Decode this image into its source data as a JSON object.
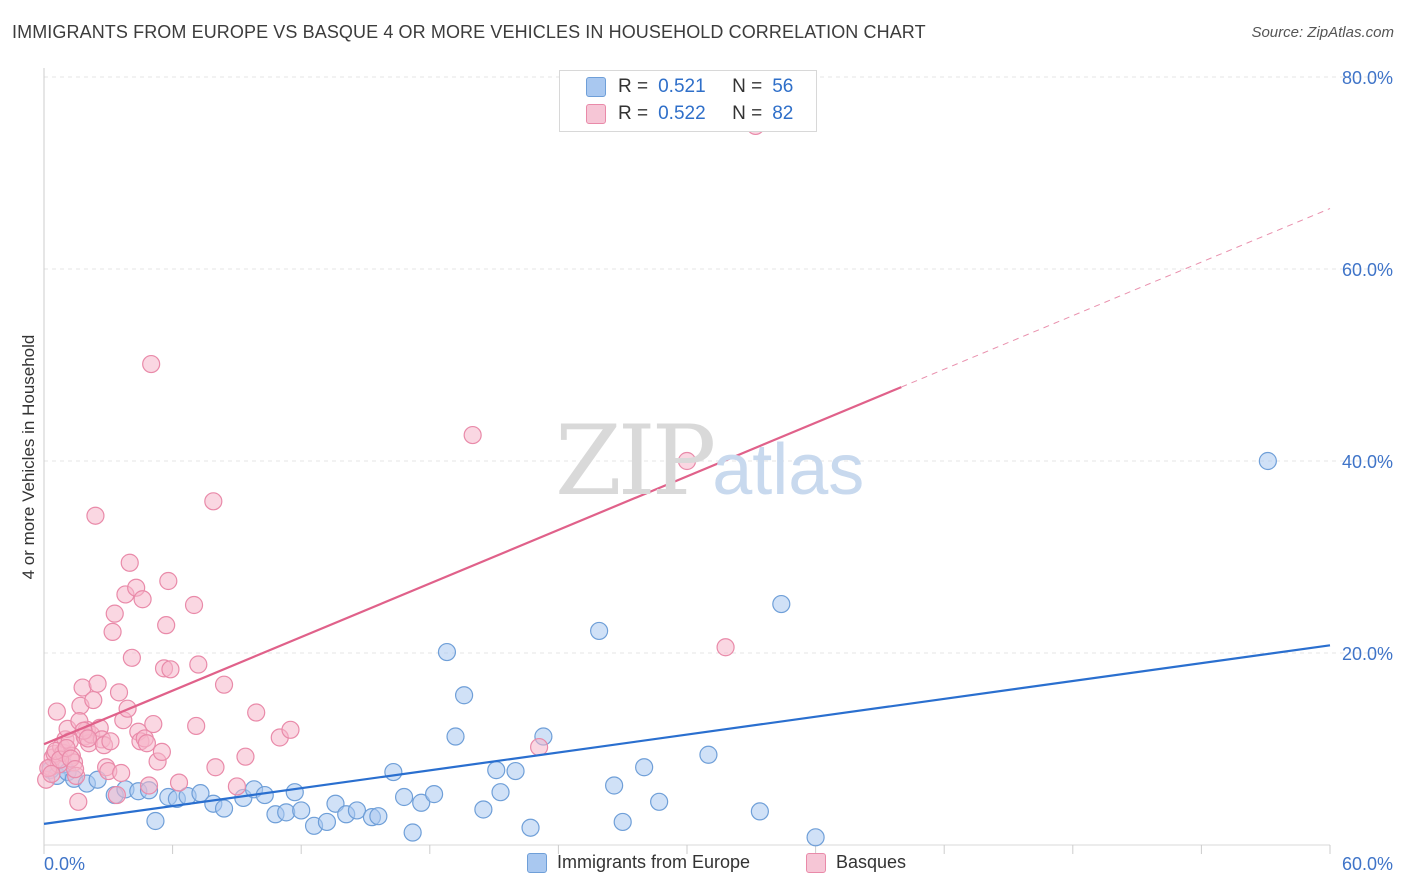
{
  "title": "IMMIGRANTS FROM EUROPE VS BASQUE 4 OR MORE VEHICLES IN HOUSEHOLD CORRELATION CHART",
  "source": "Source: ZipAtlas.com",
  "watermark": {
    "zip": "ZIP",
    "atlas": "atlas"
  },
  "legend": {
    "r_label": "R =",
    "n_label": "N =",
    "rows": [
      {
        "r": "0.521",
        "n": "56"
      },
      {
        "r": "0.522",
        "n": "82"
      }
    ]
  },
  "colors": {
    "blue_fill": "#a9c8f0",
    "blue_stroke": "#6f9fd8",
    "blue_line": "#2a6fcf",
    "pink_fill": "#f6b7cb",
    "pink_stroke": "#e98aa9",
    "pink_line": "#e0618a",
    "tick_text": "#3f74c8",
    "grid": "#e4e4e4"
  },
  "chart_data": {
    "type": "scatter",
    "title": "IMMIGRANTS FROM EUROPE VS BASQUE 4 OR MORE VEHICLES IN HOUSEHOLD CORRELATION CHART",
    "xlabel": "",
    "ylabel": "4 or more Vehicles in Household",
    "xlim": [
      0,
      60
    ],
    "ylim": [
      0,
      80
    ],
    "x_tick_labels": [
      "0.0%",
      "60.0%"
    ],
    "y_ticks": [
      20,
      40,
      60,
      80
    ],
    "y_tick_labels": [
      "20.0%",
      "40.0%",
      "60.0%",
      "80.0%"
    ],
    "grid": true,
    "legend_position": "bottom",
    "series": [
      {
        "name": "Immigrants from Europe",
        "color": "#a9c8f0",
        "trend": {
          "x0": 0,
          "y0": 2.2,
          "x1": 60,
          "y1": 20.8,
          "dashed_from": null
        },
        "points": [
          [
            0.3,
            7.8
          ],
          [
            0.6,
            7.2
          ],
          [
            0.9,
            8.4
          ],
          [
            1.1,
            7.6
          ],
          [
            1.4,
            6.9
          ],
          [
            2.0,
            6.4
          ],
          [
            2.5,
            6.8
          ],
          [
            3.3,
            5.2
          ],
          [
            3.8,
            5.8
          ],
          [
            4.4,
            5.6
          ],
          [
            4.9,
            5.7
          ],
          [
            5.2,
            2.5
          ],
          [
            5.8,
            5.0
          ],
          [
            6.2,
            4.8
          ],
          [
            6.7,
            5.1
          ],
          [
            7.3,
            5.4
          ],
          [
            7.9,
            4.3
          ],
          [
            8.4,
            3.8
          ],
          [
            9.3,
            4.9
          ],
          [
            9.8,
            5.8
          ],
          [
            10.3,
            5.2
          ],
          [
            10.8,
            3.2
          ],
          [
            11.3,
            3.4
          ],
          [
            11.7,
            5.5
          ],
          [
            12.0,
            3.6
          ],
          [
            12.6,
            2.0
          ],
          [
            13.2,
            2.4
          ],
          [
            13.6,
            4.3
          ],
          [
            14.1,
            3.2
          ],
          [
            14.6,
            3.6
          ],
          [
            15.3,
            2.9
          ],
          [
            15.6,
            3.0
          ],
          [
            16.3,
            7.6
          ],
          [
            16.8,
            5.0
          ],
          [
            17.2,
            1.3
          ],
          [
            17.6,
            4.4
          ],
          [
            18.2,
            5.3
          ],
          [
            18.8,
            20.1
          ],
          [
            19.2,
            11.3
          ],
          [
            19.6,
            15.6
          ],
          [
            20.5,
            3.7
          ],
          [
            21.1,
            7.8
          ],
          [
            21.3,
            5.5
          ],
          [
            22.0,
            7.7
          ],
          [
            22.7,
            1.8
          ],
          [
            23.3,
            11.3
          ],
          [
            25.9,
            22.3
          ],
          [
            26.6,
            6.2
          ],
          [
            27.0,
            2.4
          ],
          [
            28.0,
            8.1
          ],
          [
            28.7,
            4.5
          ],
          [
            31.0,
            9.4
          ],
          [
            33.4,
            3.5
          ],
          [
            34.4,
            25.1
          ],
          [
            36.0,
            0.8
          ],
          [
            57.1,
            40.0
          ]
        ]
      },
      {
        "name": "Basques",
        "color": "#f6b7cb",
        "trend": {
          "x0": 0,
          "y0": 10.5,
          "x1": 60,
          "y1": 66.3,
          "dashed_from": 40
        },
        "points": [
          [
            0.1,
            6.8
          ],
          [
            0.3,
            8.1
          ],
          [
            0.4,
            9.1
          ],
          [
            0.5,
            9.5
          ],
          [
            0.6,
            13.9
          ],
          [
            0.7,
            8.4
          ],
          [
            0.8,
            10.2
          ],
          [
            0.9,
            9.6
          ],
          [
            1.0,
            11.0
          ],
          [
            1.1,
            12.1
          ],
          [
            1.2,
            10.8
          ],
          [
            1.3,
            9.3
          ],
          [
            1.4,
            8.6
          ],
          [
            1.5,
            7.2
          ],
          [
            1.6,
            4.5
          ],
          [
            1.7,
            14.5
          ],
          [
            1.8,
            16.4
          ],
          [
            1.9,
            11.3
          ],
          [
            2.0,
            12.0
          ],
          [
            2.1,
            10.6
          ],
          [
            2.2,
            11.5
          ],
          [
            2.3,
            15.1
          ],
          [
            2.4,
            34.3
          ],
          [
            2.5,
            16.8
          ],
          [
            2.6,
            12.2
          ],
          [
            2.7,
            11.0
          ],
          [
            2.8,
            10.4
          ],
          [
            2.9,
            8.1
          ],
          [
            3.0,
            7.7
          ],
          [
            3.1,
            10.8
          ],
          [
            3.2,
            22.2
          ],
          [
            3.3,
            24.1
          ],
          [
            3.4,
            5.2
          ],
          [
            3.5,
            15.9
          ],
          [
            3.6,
            7.5
          ],
          [
            3.7,
            13.0
          ],
          [
            3.8,
            26.1
          ],
          [
            3.9,
            14.2
          ],
          [
            4.0,
            29.4
          ],
          [
            4.1,
            19.5
          ],
          [
            4.3,
            26.8
          ],
          [
            4.4,
            11.8
          ],
          [
            4.5,
            10.8
          ],
          [
            4.6,
            25.6
          ],
          [
            4.7,
            11.1
          ],
          [
            4.8,
            10.6
          ],
          [
            4.9,
            6.2
          ],
          [
            5.0,
            50.1
          ],
          [
            5.1,
            12.6
          ],
          [
            5.3,
            8.7
          ],
          [
            5.5,
            9.7
          ],
          [
            5.6,
            18.4
          ],
          [
            5.7,
            22.9
          ],
          [
            5.8,
            27.5
          ],
          [
            5.9,
            18.3
          ],
          [
            6.3,
            6.5
          ],
          [
            7.0,
            25.0
          ],
          [
            7.1,
            12.4
          ],
          [
            7.2,
            18.8
          ],
          [
            7.9,
            35.8
          ],
          [
            8.0,
            8.1
          ],
          [
            8.4,
            16.7
          ],
          [
            9.0,
            6.1
          ],
          [
            9.4,
            9.2
          ],
          [
            9.9,
            13.8
          ],
          [
            11.0,
            11.2
          ],
          [
            11.5,
            12.0
          ],
          [
            20.0,
            42.7
          ],
          [
            23.1,
            10.2
          ],
          [
            30.0,
            40.0
          ],
          [
            31.8,
            20.6
          ],
          [
            33.2,
            74.9
          ],
          [
            0.2,
            8.0
          ],
          [
            0.35,
            7.4
          ],
          [
            0.55,
            9.8
          ],
          [
            0.75,
            8.9
          ],
          [
            1.05,
            10.1
          ],
          [
            1.25,
            9.0
          ],
          [
            1.45,
            7.9
          ],
          [
            1.65,
            12.9
          ],
          [
            1.85,
            11.9
          ],
          [
            2.05,
            11.1
          ]
        ]
      }
    ]
  },
  "bottom_legend": [
    {
      "label": "Immigrants from Europe"
    },
    {
      "label": "Basques"
    }
  ]
}
